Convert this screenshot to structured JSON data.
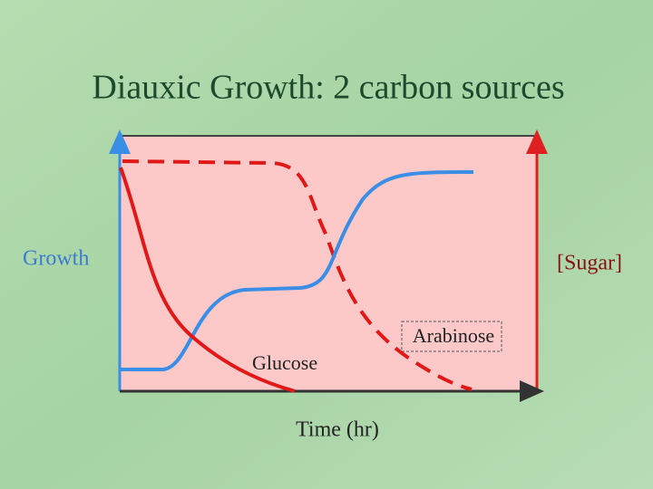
{
  "title": "Diauxic Growth: 2 carbon sources",
  "labels": {
    "left_axis": "Growth",
    "right_axis": "[Sugar]",
    "x_axis": "Time (hr)",
    "glucose": "Glucose",
    "arabinose": "Arabinose"
  }
}
